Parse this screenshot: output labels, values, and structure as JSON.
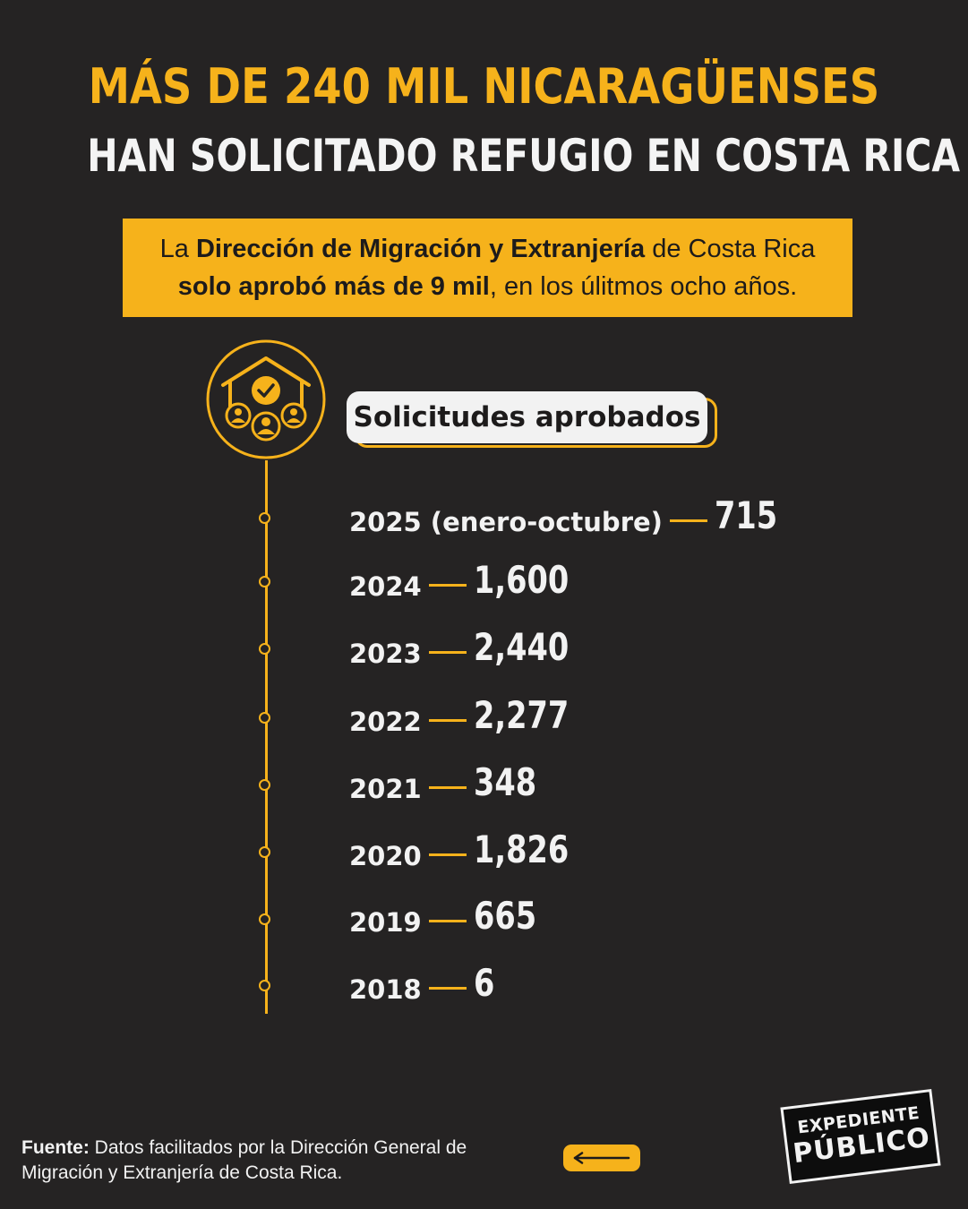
{
  "header": {
    "title_line1": "MÁS DE 240 MIL NICARAGÜENSES",
    "title_line2": "HAN SOLICITADO REFUGIO EN COSTA RICA"
  },
  "banner": {
    "part1": "La ",
    "part2_bold": "Dirección de Migración y Extranjería",
    "part3": " de Costa Rica",
    "part4_bold": "solo aprobó más de 9 mil",
    "part5": ", en los úlitmos ocho años."
  },
  "badge": {
    "label": "Solicitudes aprobados"
  },
  "timeline": [
    {
      "year": "2025 (enero-octubre)",
      "value": "715"
    },
    {
      "year": "2024",
      "value": "1,600"
    },
    {
      "year": "2023",
      "value": "2,440"
    },
    {
      "year": "2022",
      "value": "2,277"
    },
    {
      "year": "2021",
      "value": "348"
    },
    {
      "year": "2020",
      "value": "1,826"
    },
    {
      "year": "2019",
      "value": "665"
    },
    {
      "year": "2018",
      "value": "6"
    }
  ],
  "footer": {
    "source_label": "Fuente:",
    "source_text": " Datos facilitados por la Dirección General de Migración y Extranjería de Costa Rica.",
    "nav_icon": "arrow-left-icon",
    "logo_line1": "EXPEDIENTE",
    "logo_line2": "PÚBLICO"
  },
  "colors": {
    "background": "#252323",
    "accent": "#f6b21b",
    "text": "#f2f2f2"
  }
}
